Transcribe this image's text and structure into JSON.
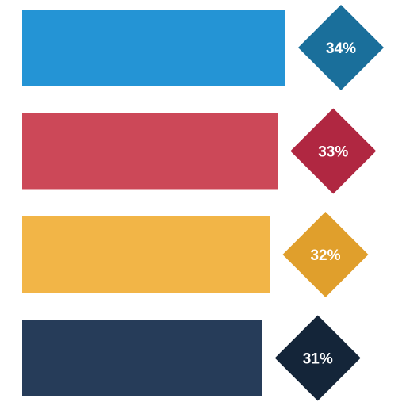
{
  "chart_data": {
    "type": "bar",
    "orientation": "horizontal",
    "categories": [
      "",
      "",
      "",
      ""
    ],
    "values": [
      34,
      33,
      32,
      31
    ],
    "labels": [
      "34%",
      "33%",
      "32%",
      "31%"
    ],
    "unit": "%",
    "bar_colors": [
      "#2494d5",
      "#cc4858",
      "#f2b547",
      "#263c59"
    ],
    "badge_colors": [
      "#1a6f9b",
      "#b02741",
      "#e09f2c",
      "#142539"
    ],
    "grid": false,
    "legend": "none"
  }
}
